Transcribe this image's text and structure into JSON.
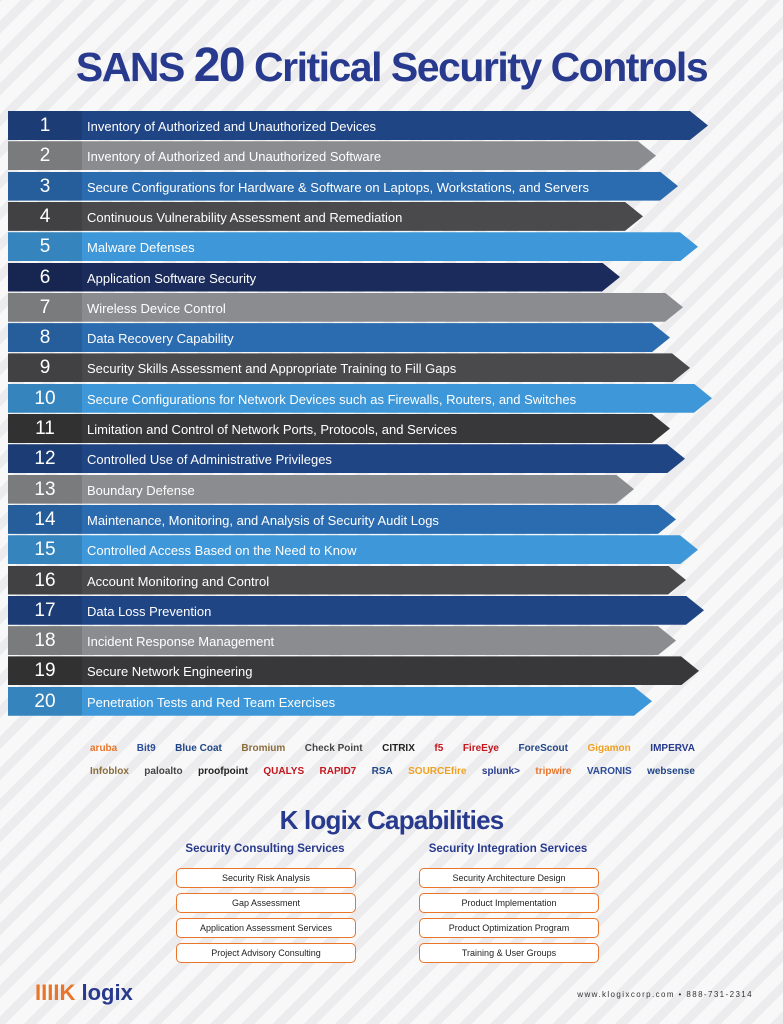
{
  "header": {
    "title_prefix": "SANS",
    "title_number": "20",
    "title_suffix": "Critical Security Controls"
  },
  "controls": [
    {
      "number": "1",
      "label": "Inventory of Authorized and Unauthorized Devices"
    },
    {
      "number": "2",
      "label": "Inventory of Authorized and Unauthorized Software"
    },
    {
      "number": "3",
      "label": "Secure Configurations for Hardware & Software on Laptops, Workstations, and Servers"
    },
    {
      "number": "4",
      "label": "Continuous Vulnerability Assessment and Remediation"
    },
    {
      "number": "5",
      "label": "Malware Defenses"
    },
    {
      "number": "6",
      "label": "Application Software Security"
    },
    {
      "number": "7",
      "label": "Wireless Device Control"
    },
    {
      "number": "8",
      "label": "Data Recovery Capability"
    },
    {
      "number": "9",
      "label": "Security Skills Assessment and Appropriate Training to Fill Gaps"
    },
    {
      "number": "10",
      "label": "Secure Configurations for Network Devices such as Firewalls, Routers, and Switches"
    },
    {
      "number": "11",
      "label": "Limitation and Control of Network Ports, Protocols, and Services"
    },
    {
      "number": "12",
      "label": "Controlled Use of Administrative Privileges"
    },
    {
      "number": "13",
      "label": "Boundary Defense"
    },
    {
      "number": "14",
      "label": "Maintenance, Monitoring, and Analysis of Security Audit Logs"
    },
    {
      "number": "15",
      "label": "Controlled Access Based on the Need to Know"
    },
    {
      "number": "16",
      "label": "Account Monitoring and Control"
    },
    {
      "number": "17",
      "label": "Data Loss Prevention"
    },
    {
      "number": "18",
      "label": "Incident Response Management"
    },
    {
      "number": "19",
      "label": "Secure Network Engineering"
    },
    {
      "number": "20",
      "label": "Penetration Tests and Red Team Exercises"
    }
  ],
  "partners": [
    [
      "aruba",
      "Bit9",
      "Blue Coat",
      "Bromium",
      "Check Point",
      "CITRIX",
      "f5",
      "FireEye",
      "ForeScout",
      "Gigamon",
      "IMPERVA"
    ],
    [
      "Infoblox",
      "paloalto",
      "proofpoint",
      "QUALYS",
      "RAPID7",
      "RSA",
      "SOURCEfire",
      "splunk>",
      "tripwire",
      "VARONIS",
      "websense"
    ]
  ],
  "capabilities": {
    "title": "K logix Capabilities",
    "columns": [
      {
        "heading": "Security Consulting Services",
        "items": [
          "Security Risk Analysis",
          "Gap Assessment",
          "Application Assessment Services",
          "Project Advisory Consulting"
        ]
      },
      {
        "heading": "Security Integration Services",
        "items": [
          "Security Architecture Design",
          "Product Implementation",
          "Product Optimization Program",
          "Training & User Groups"
        ]
      }
    ]
  },
  "footer": {
    "logo_mark": "IIIIK",
    "logo_text": "logix",
    "contact": "www.klogixcorp.com • 888-731-2314"
  }
}
